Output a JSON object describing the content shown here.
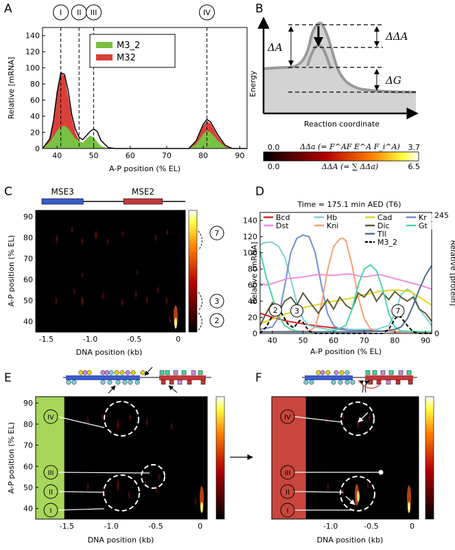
{
  "panel_labels": [
    "A",
    "B",
    "C",
    "D",
    "E",
    "F"
  ],
  "chart_data": [
    {
      "panel": "A",
      "type": "area",
      "xlabel": "A-P position (% EL)",
      "ylabel": "Relative [mRNA]",
      "xlim": [
        36,
        92
      ],
      "ylim": [
        0,
        150
      ],
      "xticks": [
        "40",
        "50",
        "60",
        "70",
        "80",
        "90"
      ],
      "yticks": [
        "0",
        "20",
        "40",
        "60",
        "80",
        "100",
        "120",
        "140"
      ],
      "legend_position": "top-center",
      "stripe_markers": [
        {
          "label": "I",
          "x": 41
        },
        {
          "label": "II",
          "x": 46
        },
        {
          "label": "III",
          "x": 50
        },
        {
          "label": "IV",
          "x": 81
        }
      ],
      "series": [
        {
          "name": "M3_2",
          "color": "#79c142",
          "x": [
            36,
            38,
            40,
            41,
            42,
            43,
            45,
            47,
            48,
            49,
            50,
            51,
            52,
            54,
            56,
            60,
            70,
            76,
            78,
            80,
            81,
            82,
            84,
            86,
            88,
            92
          ],
          "values": [
            0,
            8,
            22,
            27,
            28,
            25,
            12,
            7,
            12,
            16,
            14,
            8,
            3,
            0,
            0,
            0,
            0,
            0,
            5,
            18,
            22,
            20,
            10,
            2,
            0,
            0
          ]
        },
        {
          "name": "M32",
          "color": "#d9403a",
          "x": [
            36,
            38,
            39,
            40,
            41,
            42,
            43,
            44,
            45,
            46,
            47,
            48,
            49,
            50,
            51,
            52,
            54,
            56,
            60,
            70,
            76,
            78,
            80,
            81,
            82,
            84,
            86,
            88,
            92
          ],
          "values": [
            0,
            12,
            35,
            70,
            94,
            90,
            65,
            38,
            20,
            10,
            5,
            4,
            3,
            2,
            1,
            0,
            0,
            0,
            0,
            0,
            0,
            8,
            28,
            34,
            31,
            15,
            3,
            0,
            0
          ]
        },
        {
          "name": "",
          "color": "#000000",
          "x": [
            36,
            38,
            39,
            40,
            41,
            42,
            43,
            44,
            45,
            46,
            47,
            48,
            49,
            50,
            51,
            52,
            54,
            56,
            60,
            70,
            76,
            78,
            80,
            81,
            82,
            84,
            86,
            88,
            92
          ],
          "values": [
            0,
            12,
            35,
            70,
            94,
            92,
            72,
            42,
            24,
            14,
            11,
            16,
            21,
            24,
            21,
            10,
            1,
            0,
            0,
            0,
            0,
            9,
            30,
            36,
            33,
            17,
            4,
            0,
            0
          ]
        }
      ]
    },
    {
      "panel": "B",
      "type": "line",
      "xlabel": "Reaction coordinate",
      "ylabel": "Energy",
      "annotations": [
        "ΔA",
        "ΔΔA",
        "ΔG"
      ],
      "colorbar": {
        "top_title": "ΔΔa (= F^AF E^A F_i^A)",
        "top_min": "0.0",
        "top_max": "3.7",
        "bottom_title": "ΔΔA (= ∑ ΔΔa)",
        "bottom_min": "0.0",
        "bottom_max": "6.5"
      }
    },
    {
      "panel": "C",
      "type": "heatmap",
      "xlabel": "DNA position (kb)",
      "ylabel": "A-P position (% EL)",
      "xlim": [
        -1.62,
        0.08
      ],
      "ylim": [
        35,
        93
      ],
      "xticks": [
        "-1.5",
        "-1.0",
        "-0.5",
        "0"
      ],
      "yticks": [
        "40",
        "50",
        "60",
        "70",
        "80",
        "90"
      ],
      "elements": [
        {
          "label": "MSE3",
          "color": "#3c5cc8",
          "start": -1.55,
          "end": -1.08
        },
        {
          "label": "MSE2",
          "color": "#c0393b",
          "start": -0.62,
          "end": -0.18
        }
      ],
      "bracket_labels": [
        "7",
        "3",
        "2"
      ]
    },
    {
      "panel": "D",
      "type": "line",
      "title": "Time = 175.1 min AED (T6)",
      "xlabel": "A-P position (% EL)",
      "ylabel": "Relative [mRNA]",
      "y2label": "Relative [protein]",
      "xlim": [
        36,
        92
      ],
      "ylim": [
        0,
        150
      ],
      "y2ticks": [
        "0",
        "245"
      ],
      "xticks": [
        "40",
        "50",
        "60",
        "70",
        "80",
        "90"
      ],
      "yticks": [
        "0",
        "20",
        "40",
        "60",
        "80",
        "100",
        "120",
        "140"
      ],
      "legend_position": "top",
      "stripe_labels": [
        {
          "label": "2",
          "x": 41,
          "y": 29
        },
        {
          "label": "3",
          "x": 48,
          "y": 28
        },
        {
          "label": "7",
          "x": 81,
          "y": 28
        }
      ],
      "series": [
        {
          "name": "Bcd",
          "color": "#d62728",
          "dash": false,
          "x": [
            36,
            40,
            45,
            50,
            55,
            60,
            65,
            70,
            75,
            80,
            85,
            92
          ],
          "values": [
            25,
            20,
            15,
            12,
            9,
            7,
            5,
            4,
            3,
            2,
            2,
            1
          ]
        },
        {
          "name": "Hb",
          "color": "#7fcfd1",
          "dash": false,
          "x": [
            36,
            38,
            40,
            42,
            44,
            46,
            48,
            50,
            52,
            54,
            58,
            62,
            66,
            70,
            74,
            78,
            80,
            82,
            84,
            86,
            88,
            92
          ],
          "values": [
            110,
            113,
            113,
            108,
            95,
            68,
            38,
            18,
            10,
            8,
            5,
            5,
            5,
            5,
            5,
            10,
            25,
            48,
            55,
            50,
            30,
            10
          ]
        },
        {
          "name": "Cad",
          "color": "#e6d31e",
          "dash": false,
          "x": [
            36,
            40,
            45,
            50,
            55,
            60,
            65,
            70,
            75,
            80,
            85,
            88,
            92
          ],
          "values": [
            12,
            18,
            25,
            32,
            36,
            40,
            43,
            48,
            52,
            54,
            52,
            45,
            35
          ]
        },
        {
          "name": "Kr",
          "color": "#6f8dd6",
          "dash": false,
          "x": [
            36,
            40,
            42,
            44,
            46,
            48,
            50,
            52,
            54,
            56,
            58,
            60,
            62,
            66,
            92
          ],
          "values": [
            5,
            8,
            20,
            58,
            100,
            118,
            122,
            120,
            100,
            60,
            25,
            10,
            5,
            3,
            2
          ]
        },
        {
          "name": "Dst",
          "color": "#f08be0",
          "dash": false,
          "x": [
            36,
            38,
            40,
            45,
            50,
            55,
            60,
            65,
            70,
            75,
            80,
            85,
            88,
            92
          ],
          "values": [
            62,
            60,
            62,
            68,
            70,
            73,
            72,
            74,
            70,
            73,
            68,
            63,
            60,
            55
          ]
        },
        {
          "name": "Kni",
          "color": "#f4a074",
          "dash": false,
          "x": [
            36,
            52,
            54,
            56,
            58,
            60,
            62,
            63,
            64,
            66,
            68,
            70,
            72,
            74,
            92
          ],
          "values": [
            2,
            3,
            8,
            35,
            78,
            108,
            117,
            118,
            115,
            85,
            45,
            18,
            6,
            3,
            2
          ]
        },
        {
          "name": "Dic",
          "color": "#5a5a3c",
          "dash": false,
          "x": [
            36,
            38,
            40,
            42,
            44,
            46,
            48,
            50,
            52,
            55,
            58,
            60,
            62,
            64,
            66,
            68,
            70,
            72,
            74,
            76,
            78,
            80,
            82,
            84,
            86,
            88,
            90,
            92
          ],
          "values": [
            10,
            25,
            38,
            25,
            40,
            45,
            35,
            50,
            40,
            25,
            42,
            30,
            45,
            35,
            30,
            50,
            45,
            55,
            40,
            50,
            42,
            52,
            45,
            40,
            45,
            30,
            25,
            15
          ]
        },
        {
          "name": "Gt",
          "color": "#48d6a0",
          "dash": false,
          "x": [
            36,
            38,
            40,
            42,
            44,
            46,
            48,
            50,
            56,
            60,
            64,
            66,
            68,
            70,
            72,
            74,
            76,
            78,
            80,
            82,
            92
          ],
          "values": [
            102,
            70,
            45,
            22,
            10,
            5,
            3,
            2,
            2,
            3,
            10,
            30,
            60,
            80,
            85,
            78,
            55,
            25,
            8,
            3,
            2
          ]
        },
        {
          "name": "Tll",
          "color": "#4d6c8c",
          "dash": false,
          "x": [
            36,
            70,
            76,
            80,
            82,
            84,
            86,
            88,
            90,
            92
          ],
          "values": [
            2,
            2,
            3,
            5,
            8,
            18,
            35,
            55,
            72,
            84
          ]
        },
        {
          "name": "M3_2",
          "color": "#000000",
          "dash": true,
          "x": [
            36,
            38,
            40,
            41,
            42,
            43,
            45,
            47,
            48,
            49,
            50,
            51,
            52,
            54,
            56,
            60,
            70,
            76,
            78,
            80,
            81,
            82,
            84,
            86,
            88,
            92
          ],
          "values": [
            0,
            8,
            22,
            27,
            28,
            25,
            12,
            7,
            12,
            16,
            14,
            8,
            3,
            0,
            0,
            0,
            0,
            0,
            5,
            18,
            22,
            20,
            10,
            2,
            0,
            0
          ]
        }
      ]
    },
    {
      "panel": "E",
      "type": "heatmap",
      "xlabel": "DNA position (kb)",
      "ylabel": "A-P position (% EL)",
      "xlim": [
        -1.85,
        0.08
      ],
      "ylim": [
        35,
        93
      ],
      "xticks": [
        "-1.5",
        "-1.0",
        "-0.5",
        "0"
      ],
      "yticks": [
        "40",
        "50",
        "60",
        "70",
        "80",
        "90"
      ],
      "stripe_labels": [
        "IV",
        "III",
        "II",
        "I"
      ],
      "sidebar_color": "#a8d65a"
    },
    {
      "panel": "F",
      "type": "heatmap",
      "xlabel": "DNA position (kb)",
      "xlim": [
        -1.3,
        0.08
      ],
      "ylim": [
        35,
        93
      ],
      "xticks": [
        "-1.0",
        "-0.5",
        "0"
      ],
      "stripe_labels": [
        "IV",
        "III",
        "II",
        "I"
      ],
      "sidebar_color": "#c8463e"
    }
  ]
}
